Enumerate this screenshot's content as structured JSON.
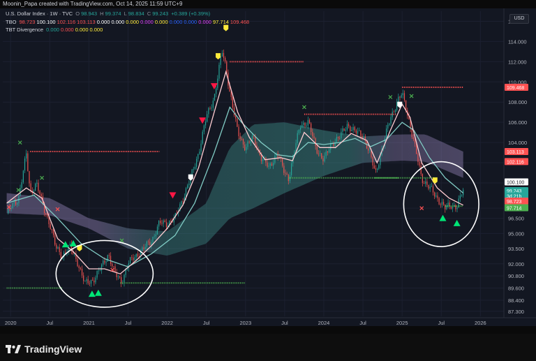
{
  "header": {
    "attribution": "Moonin_Papa created with TradingView.com, Oct 14, 2025 11:59 UTC+9"
  },
  "legend": {
    "symbol": "U.S. Dollar Index · 1W · TVC",
    "ohlc": {
      "o_label": "O",
      "o": "98.943",
      "h_label": "H",
      "h": "99.374",
      "l_label": "L",
      "l": "98.834",
      "c_label": "C",
      "c": "99.243",
      "chg": "+0.389 (+0.39%)"
    },
    "tbo": {
      "name": "TBO",
      "values": [
        "98.723",
        "100.100",
        "102.116",
        "103.113",
        "0.000",
        "0.000",
        "0.000",
        "0.000",
        "0.000",
        "0.000",
        "0.000",
        "0.000",
        "97.714",
        "109.468"
      ],
      "colors": [
        "#ff5252",
        "#ffffff",
        "#ff5252",
        "#ff5252",
        "#ffffff",
        "#ffffff",
        "#ffeb3b",
        "#e040fb",
        "#ffeb3b",
        "#2962ff",
        "#2962ff",
        "#e040fb",
        "#ffeb3b",
        "#ff5252"
      ]
    },
    "tbt": {
      "name": "TBT Divergence",
      "values": [
        "0.000",
        "0.000",
        "0.000",
        "0.000"
      ],
      "colors": [
        "#26a69a",
        "#ff5252",
        "#ffeb3b",
        "#ffeb3b"
      ]
    }
  },
  "currency_button": "USD",
  "footer": {
    "brand": "TradingView"
  },
  "colors": {
    "background": "#131722",
    "up": "#26a69a",
    "down": "#ef5350",
    "ribbon_up": "#4db6ac",
    "ribbon_down": "#b39ddb",
    "fast_ma": "#ffcdd2",
    "slow_ma": "#80cbc4",
    "resistance": "#ff5252",
    "support": "#4caf50",
    "annotation": "#ffffff"
  },
  "chart_data": {
    "type": "candlestick",
    "title": "U.S. Dollar Index · 1W · TVC",
    "ylim": [
      86.8,
      117.0
    ],
    "xlim": [
      2019.9,
      2026.3
    ],
    "y_ticks": [
      "116.000",
      "114.000",
      "112.000",
      "110.000",
      "108.000",
      "106.000",
      "104.000",
      "102.000",
      "100.000",
      "97.500",
      "96.500",
      "95.000",
      "93.500",
      "92.000",
      "90.800",
      "89.600",
      "88.400",
      "87.300"
    ],
    "y_tick_values": [
      116,
      114,
      112,
      110,
      108,
      106,
      104,
      102,
      100,
      97.5,
      96.5,
      95,
      93.5,
      92,
      90.8,
      89.6,
      88.4,
      87.3
    ],
    "x_ticks": [
      {
        "label": "2020",
        "t": 2020.0
      },
      {
        "label": "Jul",
        "t": 2020.5
      },
      {
        "label": "2021",
        "t": 2021.0
      },
      {
        "label": "Jul",
        "t": 2021.5
      },
      {
        "label": "2022",
        "t": 2022.0
      },
      {
        "label": "Jul",
        "t": 2022.5
      },
      {
        "label": "2023",
        "t": 2023.0
      },
      {
        "label": "Jul",
        "t": 2023.5
      },
      {
        "label": "2024",
        "t": 2024.0
      },
      {
        "label": "Jul",
        "t": 2024.5
      },
      {
        "label": "2025",
        "t": 2025.0
      },
      {
        "label": "Jul",
        "t": 2025.5
      },
      {
        "label": "2026",
        "t": 2026.0
      }
    ],
    "price_path": [
      [
        2019.95,
        97.0
      ],
      [
        2020.1,
        98.5
      ],
      [
        2020.2,
        102.8
      ],
      [
        2020.25,
        99.0
      ],
      [
        2020.33,
        100.0
      ],
      [
        2020.42,
        97.5
      ],
      [
        2020.5,
        96.0
      ],
      [
        2020.58,
        93.5
      ],
      [
        2020.66,
        92.8
      ],
      [
        2020.75,
        93.7
      ],
      [
        2020.85,
        92.3
      ],
      [
        2020.95,
        90.0
      ],
      [
        2021.05,
        90.4
      ],
      [
        2021.15,
        91.5
      ],
      [
        2021.25,
        93.0
      ],
      [
        2021.33,
        91.0
      ],
      [
        2021.42,
        90.2
      ],
      [
        2021.5,
        92.0
      ],
      [
        2021.6,
        92.8
      ],
      [
        2021.7,
        93.5
      ],
      [
        2021.8,
        94.3
      ],
      [
        2021.9,
        96.0
      ],
      [
        2022.0,
        96.0
      ],
      [
        2022.1,
        96.5
      ],
      [
        2022.2,
        98.5
      ],
      [
        2022.3,
        100.5
      ],
      [
        2022.4,
        103.0
      ],
      [
        2022.5,
        106.5
      ],
      [
        2022.6,
        108.5
      ],
      [
        2022.7,
        113.0
      ],
      [
        2022.75,
        111.5
      ],
      [
        2022.8,
        109.0
      ],
      [
        2022.9,
        105.0
      ],
      [
        2023.0,
        103.5
      ],
      [
        2023.1,
        104.5
      ],
      [
        2023.2,
        102.5
      ],
      [
        2023.3,
        101.5
      ],
      [
        2023.4,
        103.0
      ],
      [
        2023.5,
        101.0
      ],
      [
        2023.55,
        100.5
      ],
      [
        2023.62,
        103.0
      ],
      [
        2023.7,
        105.8
      ],
      [
        2023.8,
        106.0
      ],
      [
        2023.9,
        103.5
      ],
      [
        2024.0,
        102.2
      ],
      [
        2024.1,
        104.0
      ],
      [
        2024.2,
        104.5
      ],
      [
        2024.3,
        105.8
      ],
      [
        2024.4,
        105.0
      ],
      [
        2024.5,
        104.8
      ],
      [
        2024.6,
        102.5
      ],
      [
        2024.66,
        101.0
      ],
      [
        2024.75,
        103.5
      ],
      [
        2024.85,
        106.5
      ],
      [
        2024.95,
        108.2
      ],
      [
        2025.0,
        108.8
      ],
      [
        2025.05,
        107.5
      ],
      [
        2025.15,
        104.0
      ],
      [
        2025.25,
        100.5
      ],
      [
        2025.35,
        99.5
      ],
      [
        2025.45,
        98.5
      ],
      [
        2025.55,
        97.5
      ],
      [
        2025.62,
        97.8
      ],
      [
        2025.7,
        97.7
      ],
      [
        2025.78,
        99.24
      ]
    ],
    "series": [
      {
        "name": "fast MA",
        "values": [
          [
            2019.95,
            98.0
          ],
          [
            2020.2,
            99.5
          ],
          [
            2020.4,
            98.5
          ],
          [
            2020.6,
            94.5
          ],
          [
            2020.8,
            93.2
          ],
          [
            2021.0,
            91.5
          ],
          [
            2021.2,
            91.5
          ],
          [
            2021.4,
            91.0
          ],
          [
            2021.6,
            92.3
          ],
          [
            2021.8,
            93.8
          ],
          [
            2022.0,
            95.5
          ],
          [
            2022.2,
            97.8
          ],
          [
            2022.4,
            101.5
          ],
          [
            2022.6,
            107.0
          ],
          [
            2022.75,
            111.0
          ],
          [
            2022.9,
            107.0
          ],
          [
            2023.05,
            104.5
          ],
          [
            2023.25,
            102.3
          ],
          [
            2023.45,
            102.5
          ],
          [
            2023.6,
            102.2
          ],
          [
            2023.75,
            105.0
          ],
          [
            2023.95,
            103.5
          ],
          [
            2024.15,
            103.5
          ],
          [
            2024.35,
            104.9
          ],
          [
            2024.55,
            104.2
          ],
          [
            2024.68,
            102.0
          ],
          [
            2024.85,
            105.2
          ],
          [
            2025.0,
            107.8
          ],
          [
            2025.1,
            106.5
          ],
          [
            2025.25,
            102.0
          ],
          [
            2025.45,
            99.5
          ],
          [
            2025.6,
            98.5
          ],
          [
            2025.78,
            97.8
          ]
        ]
      },
      {
        "name": "slow MA",
        "values": [
          [
            2019.95,
            98.0
          ],
          [
            2020.3,
            98.8
          ],
          [
            2020.6,
            96.5
          ],
          [
            2020.9,
            94.0
          ],
          [
            2021.2,
            92.5
          ],
          [
            2021.5,
            91.7
          ],
          [
            2021.8,
            93.0
          ],
          [
            2022.1,
            94.8
          ],
          [
            2022.35,
            98.0
          ],
          [
            2022.6,
            103.0
          ],
          [
            2022.8,
            107.5
          ],
          [
            2022.95,
            106.0
          ],
          [
            2023.2,
            104.0
          ],
          [
            2023.4,
            102.8
          ],
          [
            2023.6,
            102.6
          ],
          [
            2023.8,
            104.0
          ],
          [
            2024.0,
            103.8
          ],
          [
            2024.2,
            104.0
          ],
          [
            2024.4,
            104.4
          ],
          [
            2024.6,
            103.6
          ],
          [
            2024.8,
            104.3
          ],
          [
            2025.0,
            106.0
          ],
          [
            2025.15,
            105.2
          ],
          [
            2025.35,
            102.5
          ],
          [
            2025.55,
            100.5
          ],
          [
            2025.78,
            99.0
          ]
        ]
      },
      {
        "name": "ribbon upper",
        "values": [
          [
            2019.95,
            99.0
          ],
          [
            2020.5,
            98.5
          ],
          [
            2021.0,
            96.5
          ],
          [
            2021.5,
            95.5
          ],
          [
            2022.0,
            95.2
          ],
          [
            2022.5,
            98.0
          ],
          [
            2022.8,
            103.5
          ],
          [
            2023.1,
            105.8
          ],
          [
            2023.5,
            106.0
          ],
          [
            2024.0,
            105.2
          ],
          [
            2024.5,
            104.6
          ],
          [
            2025.0,
            104.8
          ],
          [
            2025.3,
            104.8
          ],
          [
            2025.78,
            103.1
          ]
        ]
      },
      {
        "name": "ribbon lower",
        "values": [
          [
            2019.95,
            97.0
          ],
          [
            2020.5,
            96.8
          ],
          [
            2021.0,
            95.5
          ],
          [
            2021.5,
            93.5
          ],
          [
            2022.0,
            92.8
          ],
          [
            2022.5,
            94.0
          ],
          [
            2022.8,
            96.5
          ],
          [
            2023.1,
            97.5
          ],
          [
            2023.5,
            99.0
          ],
          [
            2024.0,
            100.7
          ],
          [
            2024.5,
            102.0
          ],
          [
            2025.0,
            102.2
          ],
          [
            2025.3,
            102.1
          ],
          [
            2025.78,
            100.5
          ]
        ]
      }
    ],
    "levels": [
      {
        "kind": "resistance",
        "y": 103.113,
        "from": 2020.25,
        "to": 2021.9
      },
      {
        "kind": "support",
        "y": 89.6,
        "from": 2019.95,
        "to": 2020.66
      },
      {
        "kind": "support",
        "y": 90.1,
        "from": 2021.4,
        "to": 2023.0
      },
      {
        "kind": "resistance",
        "y": 112.0,
        "from": 2022.8,
        "to": 2023.75
      },
      {
        "kind": "resistance",
        "y": 106.8,
        "from": 2023.75,
        "to": 2024.92
      },
      {
        "kind": "support",
        "y": 100.5,
        "from": 2023.55,
        "to": 2024.95
      },
      {
        "kind": "resistance",
        "y": 109.468,
        "from": 2025.0,
        "to": 2025.78
      },
      {
        "kind": "support",
        "y": 100.5,
        "from": 2024.65,
        "to": 2025.45
      },
      {
        "kind": "support",
        "y": 97.714,
        "from": 2025.55,
        "to": 2025.78
      }
    ],
    "signals": [
      {
        "t": 2020.12,
        "y": 104.0,
        "kind": "x-green"
      },
      {
        "t": 2020.1,
        "y": 99.3,
        "kind": "x-green"
      },
      {
        "t": 2019.98,
        "y": 97.6,
        "kind": "x-red"
      },
      {
        "t": 2020.4,
        "y": 100.5,
        "kind": "x-green"
      },
      {
        "t": 2020.6,
        "y": 97.4,
        "kind": "x-red"
      },
      {
        "t": 2021.42,
        "y": 94.3,
        "kind": "x-green"
      },
      {
        "t": 2021.3,
        "y": 91.4,
        "kind": "x-red"
      },
      {
        "t": 2023.75,
        "y": 107.5,
        "kind": "x-green"
      },
      {
        "t": 2024.85,
        "y": 108.5,
        "kind": "x-green"
      },
      {
        "t": 2025.25,
        "y": 97.5,
        "kind": "x-red"
      },
      {
        "t": 2025.12,
        "y": 108.6,
        "kind": "x-green"
      },
      {
        "t": 2020.7,
        "y": 93.9,
        "kind": "tri-up-green"
      },
      {
        "t": 2020.8,
        "y": 94.0,
        "kind": "tri-up-green"
      },
      {
        "t": 2020.88,
        "y": 93.5,
        "kind": "flag-yellow"
      },
      {
        "t": 2021.04,
        "y": 89.0,
        "kind": "tri-up-green"
      },
      {
        "t": 2021.12,
        "y": 89.1,
        "kind": "tri-up-green"
      },
      {
        "t": 2022.07,
        "y": 98.8,
        "kind": "tri-down-red"
      },
      {
        "t": 2022.45,
        "y": 106.2,
        "kind": "tri-down-red"
      },
      {
        "t": 2022.6,
        "y": 109.6,
        "kind": "tri-down-red"
      },
      {
        "t": 2022.65,
        "y": 112.5,
        "kind": "flag-yellow"
      },
      {
        "t": 2022.75,
        "y": 115.3,
        "kind": "flag-yellow"
      },
      {
        "t": 2025.52,
        "y": 96.5,
        "kind": "tri-up-green"
      },
      {
        "t": 2025.7,
        "y": 96.0,
        "kind": "tri-up-green"
      },
      {
        "t": 2024.97,
        "y": 107.7,
        "kind": "flag-white"
      },
      {
        "t": 2025.42,
        "y": 100.2,
        "kind": "flag-yellow"
      },
      {
        "t": 2022.3,
        "y": 100.5,
        "kind": "flag-white"
      }
    ],
    "annotations": [
      {
        "shape": "ellipse",
        "cx": 2021.2,
        "cy": 91.0,
        "rx": 0.62,
        "ry": 3.3
      },
      {
        "shape": "ellipse",
        "cx": 2025.5,
        "cy": 97.9,
        "rx": 0.48,
        "ry": 4.2
      }
    ],
    "price_labels": [
      {
        "text": "109.468",
        "y": 109.468,
        "bg": "#ff5252",
        "fg": "#ffffff"
      },
      {
        "text": "103.113",
        "y": 103.113,
        "bg": "#ff5252",
        "fg": "#ffffff"
      },
      {
        "text": "102.116",
        "y": 102.116,
        "bg": "#ff5252",
        "fg": "#ffffff"
      },
      {
        "text": "100.100",
        "y": 100.1,
        "bg": "#ffffff",
        "fg": "#131722"
      },
      {
        "text": "99.243",
        "y": 99.243,
        "bg": "#26a69a",
        "fg": "#ffffff"
      },
      {
        "text": "3d 21h",
        "y": 98.72,
        "bg": "#26a69a",
        "fg": "#ffffff"
      },
      {
        "text": "98.723",
        "y": 98.2,
        "bg": "#ff5252",
        "fg": "#ffffff"
      },
      {
        "text": "97.714",
        "y": 97.55,
        "bg": "#4caf50",
        "fg": "#ffffff"
      }
    ]
  }
}
